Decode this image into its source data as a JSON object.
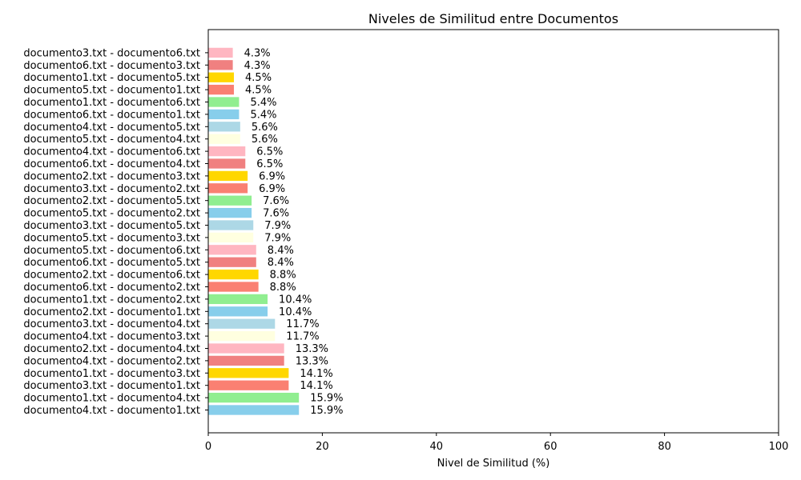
{
  "chart_data": {
    "type": "bar",
    "orientation": "horizontal",
    "title": "Niveles de Similitud entre Documentos",
    "xlabel": "Nivel de Similitud (%)",
    "ylabel": "",
    "xlim": [
      0,
      100
    ],
    "xticks": [
      "0",
      "20",
      "40",
      "60",
      "80",
      "100"
    ],
    "grid": false,
    "categories": [
      "documento4.txt - documento1.txt",
      "documento1.txt - documento4.txt",
      "documento3.txt - documento1.txt",
      "documento1.txt - documento3.txt",
      "documento4.txt - documento2.txt",
      "documento2.txt - documento4.txt",
      "documento4.txt - documento3.txt",
      "documento3.txt - documento4.txt",
      "documento2.txt - documento1.txt",
      "documento1.txt - documento2.txt",
      "documento6.txt - documento2.txt",
      "documento2.txt - documento6.txt",
      "documento6.txt - documento5.txt",
      "documento5.txt - documento6.txt",
      "documento5.txt - documento3.txt",
      "documento3.txt - documento5.txt",
      "documento5.txt - documento2.txt",
      "documento2.txt - documento5.txt",
      "documento3.txt - documento2.txt",
      "documento2.txt - documento3.txt",
      "documento6.txt - documento4.txt",
      "documento4.txt - documento6.txt",
      "documento5.txt - documento4.txt",
      "documento4.txt - documento5.txt",
      "documento6.txt - documento1.txt",
      "documento1.txt - documento6.txt",
      "documento5.txt - documento1.txt",
      "documento1.txt - documento5.txt",
      "documento6.txt - documento3.txt",
      "documento3.txt - documento6.txt"
    ],
    "values": [
      15.9,
      15.9,
      14.1,
      14.1,
      13.3,
      13.3,
      11.7,
      11.7,
      10.4,
      10.4,
      8.8,
      8.8,
      8.4,
      8.4,
      7.9,
      7.9,
      7.6,
      7.6,
      6.9,
      6.9,
      6.5,
      6.5,
      5.6,
      5.6,
      5.4,
      5.4,
      4.5,
      4.5,
      4.3,
      4.3
    ],
    "value_labels": [
      "15.9%",
      "15.9%",
      "14.1%",
      "14.1%",
      "13.3%",
      "13.3%",
      "11.7%",
      "11.7%",
      "10.4%",
      "10.4%",
      "8.8%",
      "8.8%",
      "8.4%",
      "8.4%",
      "7.9%",
      "7.9%",
      "7.6%",
      "7.6%",
      "6.9%",
      "6.9%",
      "6.5%",
      "6.5%",
      "5.6%",
      "5.6%",
      "5.4%",
      "5.4%",
      "4.5%",
      "4.5%",
      "4.3%",
      "4.3%"
    ],
    "colors": [
      "#87CEEB",
      "#90EE90",
      "#FA8072",
      "#FFD700",
      "#F08080",
      "#FFB6C1",
      "#FFFFE0",
      "#ADD8E6"
    ]
  }
}
